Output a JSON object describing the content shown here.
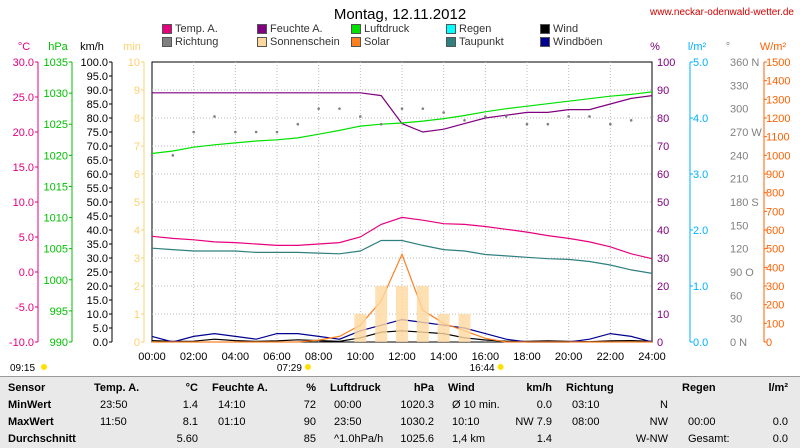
{
  "header": {
    "title": "Montag, 12.11.2012",
    "site": "www.neckar-odenwald-wetter.de"
  },
  "legend": [
    {
      "label": "Temp. A.",
      "color": "#e6007e"
    },
    {
      "label": "Richtung",
      "color": "#808080"
    },
    {
      "label": "Feuchte A.",
      "color": "#800080"
    },
    {
      "label": "Sonnenschein",
      "color": "#ffd8a0"
    },
    {
      "label": "Luftdruck",
      "color": "#00e000"
    },
    {
      "label": "Solar",
      "color": "#ff8020"
    },
    {
      "label": "Regen",
      "color": "#00ffff"
    },
    {
      "label": "Taupunkt",
      "color": "#2f7f7f"
    },
    {
      "label": "Wind",
      "color": "#000000"
    },
    {
      "label": "Windböen",
      "color": "#000090"
    }
  ],
  "axes": {
    "temp": {
      "unit": "°C",
      "color": "#e6007e",
      "ticks": [
        "30.0",
        "25.0",
        "20.0",
        "15.0",
        "10.0",
        "5.0",
        "0.0",
        "-5.0",
        "-10.0"
      ]
    },
    "pressure": {
      "unit": "hPa",
      "color": "#00c000",
      "ticks": [
        "1035",
        "1030",
        "1025",
        "1020",
        "1015",
        "1010",
        "1005",
        "1000",
        "995",
        "990"
      ]
    },
    "wind": {
      "unit": "km/h",
      "color": "#000",
      "ticks": [
        "100.0",
        "95.0",
        "90.0",
        "85.0",
        "80.0",
        "75.0",
        "70.0",
        "65.0",
        "60.0",
        "55.0",
        "50.0",
        "45.0",
        "40.0",
        "35.0",
        "30.0",
        "25.0",
        "20.0",
        "15.0",
        "10.0",
        "5.0",
        "0.0"
      ]
    },
    "sun": {
      "unit": "min",
      "color": "#ffd070",
      "ticks": [
        "10",
        "9",
        "8",
        "7",
        "6",
        "5",
        "4",
        "3",
        "2",
        "1",
        "0"
      ]
    },
    "humidity": {
      "unit": "%",
      "color": "#800080",
      "ticks": [
        "100",
        "90",
        "80",
        "70",
        "60",
        "50",
        "40",
        "30",
        "20",
        "10",
        "0"
      ]
    },
    "rain": {
      "unit": "l/m²",
      "color": "#00b0ff",
      "ticks": [
        "5.0",
        "4.0",
        "3.0",
        "2.0",
        "1.0",
        "0.0"
      ]
    },
    "direction": {
      "unit": "°",
      "color": "#808080",
      "ticks": [
        "360 N",
        "330",
        "300",
        "270 W",
        "240",
        "210",
        "180 S",
        "150",
        "120",
        "90 O",
        "60",
        "30",
        "0 N"
      ]
    },
    "solar": {
      "unit": "W/m²",
      "color": "#ff6000",
      "ticks": [
        "1500",
        "1400",
        "1300",
        "1200",
        "1100",
        "1000",
        "900",
        "800",
        "700",
        "600",
        "500",
        "400",
        "300",
        "200",
        "100",
        "0"
      ]
    },
    "time": [
      "00:00",
      "02:00",
      "04:00",
      "06:00",
      "08:00",
      "10:00",
      "12:00",
      "14:00",
      "16:00",
      "18:00",
      "20:00",
      "22:00",
      "24:00"
    ]
  },
  "sun_times": {
    "dawn": "07:29",
    "dusk": "16:44",
    "left": "09:15"
  },
  "stats": {
    "headers": [
      "Sensor",
      "Temp. A.",
      "°C",
      "Feuchte A.",
      "%",
      "Luftdruck",
      "hPa",
      "Wind",
      "km/h",
      "Richtung",
      "Regen",
      "l/m²"
    ],
    "rows": [
      {
        "label": "MinWert",
        "temp_time": "23:50",
        "temp": "1.4",
        "hum_time": "14:10",
        "hum": "72",
        "press_time": "00:00",
        "press": "1020.3",
        "wind_label": "Ø 10 min.",
        "wind": "0.0",
        "dir_time": "03:10",
        "dir": "N",
        "rain_time": "",
        "rain": ""
      },
      {
        "label": "MaxWert",
        "temp_time": "11:50",
        "temp": "8.1",
        "hum_time": "01:10",
        "hum": "90",
        "press_time": "23:50",
        "press": "1030.2",
        "wind_label": "10:10",
        "wind": "NW 7.9",
        "dir_time": "08:00",
        "dir": "NW",
        "rain_time": "00:00",
        "rain": "0.0"
      },
      {
        "label": "Durchschnitt",
        "temp_time": "",
        "temp": "5.60",
        "hum_time": "",
        "hum": "85",
        "press_time": "^1.0hPa/h",
        "press": "1025.6",
        "wind_label": "1,4 km",
        "wind": "1.4",
        "dir_time": "",
        "dir": "W-NW",
        "rain_time": "Gesamt:",
        "rain": "0.0"
      }
    ]
  },
  "chart_data": {
    "type": "line",
    "x": [
      "00:00",
      "01:00",
      "02:00",
      "03:00",
      "04:00",
      "05:00",
      "06:00",
      "07:00",
      "08:00",
      "09:00",
      "10:00",
      "11:00",
      "12:00",
      "13:00",
      "14:00",
      "15:00",
      "16:00",
      "17:00",
      "18:00",
      "19:00",
      "20:00",
      "21:00",
      "22:00",
      "23:00",
      "24:00"
    ],
    "series": [
      {
        "name": "Temp. A.",
        "axis": "temp",
        "color": "#e6007e",
        "values": [
          5.1,
          4.8,
          4.6,
          4.3,
          4.2,
          4.0,
          3.8,
          3.8,
          4.0,
          4.2,
          5.0,
          6.8,
          7.8,
          7.4,
          6.9,
          6.8,
          6.5,
          6.1,
          5.7,
          5.2,
          4.8,
          4.3,
          3.6,
          2.6,
          1.9
        ]
      },
      {
        "name": "Taupunkt",
        "axis": "temp",
        "color": "#2f7f7f",
        "values": [
          3.4,
          3.2,
          3.0,
          3.0,
          3.0,
          2.8,
          2.8,
          2.8,
          2.7,
          2.6,
          3.0,
          4.5,
          4.5,
          3.8,
          3.2,
          3.0,
          2.5,
          2.3,
          2.1,
          1.9,
          1.8,
          1.5,
          1.0,
          0.3,
          -0.2
        ]
      },
      {
        "name": "Feuchte A.",
        "axis": "humidity",
        "color": "#800080",
        "values": [
          89,
          89,
          89,
          89,
          89,
          89,
          89,
          89,
          89,
          89,
          89,
          88,
          78,
          75,
          76,
          78,
          80,
          81,
          82,
          82,
          83,
          83,
          85,
          87,
          88
        ]
      },
      {
        "name": "Luftdruck",
        "axis": "pressure",
        "color": "#00e000",
        "values": [
          1020.3,
          1020.7,
          1021.3,
          1021.7,
          1022.0,
          1022.3,
          1022.5,
          1022.8,
          1023.4,
          1024.0,
          1024.7,
          1025.0,
          1025.2,
          1025.5,
          1025.9,
          1026.4,
          1027.0,
          1027.5,
          1027.9,
          1028.3,
          1028.7,
          1029.1,
          1029.5,
          1029.8,
          1030.2
        ]
      },
      {
        "name": "Wind",
        "axis": "wind",
        "color": "#000000",
        "values": [
          0.5,
          0.2,
          0.3,
          1.0,
          0.5,
          0.2,
          0.4,
          0.8,
          0.5,
          0.2,
          1.5,
          3.5,
          4.0,
          3.5,
          3.0,
          1.5,
          0.7,
          0.3,
          0.2,
          0.4,
          0.2,
          0.1,
          0.4,
          0.5,
          0.2
        ]
      },
      {
        "name": "Windböen",
        "axis": "wind",
        "color": "#000090",
        "values": [
          2,
          0,
          2,
          3,
          2,
          1,
          3,
          3,
          2,
          1,
          4,
          6,
          8,
          7,
          6,
          5,
          3,
          1,
          0,
          0,
          0,
          1,
          3,
          2,
          0
        ]
      },
      {
        "name": "Solar",
        "axis": "solar",
        "color": "#ff8020",
        "values": [
          0,
          0,
          0,
          0,
          0,
          0,
          0,
          0,
          10,
          30,
          90,
          220,
          470,
          170,
          100,
          60,
          20,
          0,
          0,
          0,
          0,
          0,
          0,
          0,
          0
        ]
      },
      {
        "name": "Sonnenschein",
        "axis": "sun",
        "color": "#ffd8a0",
        "type": "bar",
        "values": [
          0,
          0,
          0,
          0,
          0,
          0,
          0,
          0,
          0,
          0,
          1,
          2,
          2,
          2,
          1,
          1,
          0,
          0,
          0,
          0,
          0,
          0,
          0,
          0,
          0
        ]
      },
      {
        "name": "Richtung",
        "axis": "direction",
        "color": "#808080",
        "type": "scatter",
        "values": [
          240,
          240,
          270,
          290,
          270,
          270,
          270,
          280,
          300,
          300,
          290,
          280,
          300,
          300,
          295,
          285,
          290,
          290,
          280,
          280,
          290,
          290,
          280,
          285,
          290
        ]
      }
    ]
  }
}
